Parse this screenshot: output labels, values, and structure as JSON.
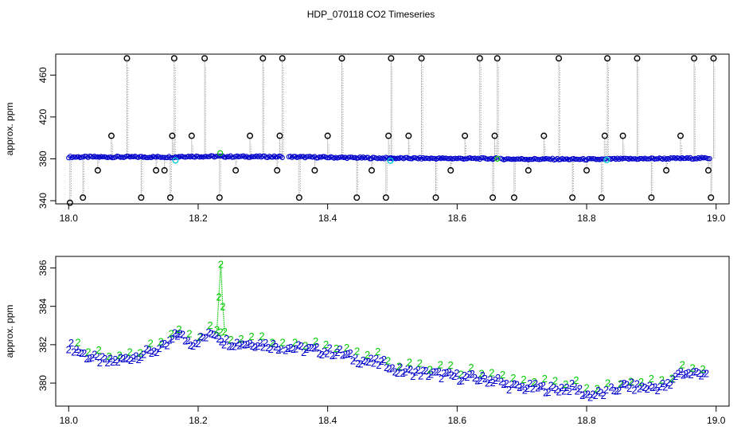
{
  "title": "HDP_070118  CO2 Timeseries",
  "colors": {
    "frame": "#000000",
    "main_points": "#0000cc",
    "spike_points": "#000000",
    "flag_cyan": "#00cccc",
    "flag_green": "#00cc00",
    "spike_lines": "#888888"
  },
  "chart_data": [
    {
      "type": "scatter",
      "ylabel": "approx. ppm",
      "xlim": [
        17.98,
        19.02
      ],
      "ylim": [
        337,
        480
      ],
      "xticks": [
        "18.0",
        "18.2",
        "18.4",
        "18.6",
        "18.8",
        "19.0"
      ],
      "xtick_values": [
        18.0,
        18.2,
        18.4,
        18.6,
        18.8,
        19.0
      ],
      "yticks": [
        "340",
        "380",
        "420",
        "460"
      ],
      "ytick_values": [
        340,
        380,
        420,
        460
      ],
      "baseline_segments": [
        {
          "x": [
            18.0,
            18.17
          ],
          "y": [
            381.8,
            381.8
          ]
        },
        {
          "x": [
            18.17,
            18.33
          ],
          "y": [
            382.4,
            382.0
          ]
        },
        {
          "x": [
            18.34,
            18.5
          ],
          "y": [
            381.9,
            380.6
          ]
        },
        {
          "x": [
            18.5,
            18.66
          ],
          "y": [
            380.6,
            380.2
          ]
        },
        {
          "x": [
            18.667,
            18.83
          ],
          "y": [
            379.9,
            379.5
          ]
        },
        {
          "x": [
            18.835,
            18.99
          ],
          "y": [
            379.8,
            380.7
          ]
        }
      ],
      "spike_x": [
        18.002,
        18.022,
        18.045,
        18.066,
        18.09,
        18.112,
        18.135,
        18.148,
        18.157,
        18.16,
        18.163,
        18.19,
        18.21,
        18.233,
        18.258,
        18.28,
        18.3,
        18.322,
        18.326,
        18.33,
        18.356,
        18.38,
        18.4,
        18.422,
        18.445,
        18.468,
        18.49,
        18.494,
        18.498,
        18.525,
        18.545,
        18.567,
        18.59,
        18.612,
        18.635,
        18.655,
        18.658,
        18.662,
        18.688,
        18.71,
        18.734,
        18.757,
        18.778,
        18.8,
        18.823,
        18.828,
        18.832,
        18.856,
        18.878,
        18.9,
        18.923,
        18.945,
        18.966,
        18.988,
        18.992,
        18.996
      ],
      "spike_y": [
        338,
        343,
        369,
        402,
        476,
        343,
        369,
        369,
        343,
        402,
        476,
        402,
        476,
        343,
        369,
        402,
        476,
        369,
        402,
        476,
        343,
        369,
        402,
        476,
        343,
        369,
        343,
        402,
        476,
        402,
        476,
        343,
        369,
        402,
        476,
        343,
        402,
        476,
        343,
        369,
        402,
        476,
        343,
        369,
        343,
        402,
        476,
        402,
        476,
        343,
        369,
        402,
        476,
        369,
        343,
        476
      ],
      "flags_cyan": {
        "x": [
          18.165,
          18.497,
          18.831
        ],
        "y": [
          378.5,
          378.2,
          378.9
        ]
      },
      "flags_green": {
        "x": [
          18.234,
          18.662
        ],
        "y": [
          385.5,
          380.0
        ]
      }
    },
    {
      "type": "scatter",
      "ylabel": "approx. ppm",
      "xlim": [
        17.98,
        19.02
      ],
      "ylim": [
        378.8,
        386.6
      ],
      "xticks": [
        "18.0",
        "18.2",
        "18.4",
        "18.6",
        "18.8",
        "19.0"
      ],
      "xtick_values": [
        18.0,
        18.2,
        18.4,
        18.6,
        18.8,
        19.0
      ],
      "yticks": [
        "380",
        "382",
        "384",
        "386"
      ],
      "ytick_values": [
        380,
        382,
        384,
        386
      ],
      "point_label": "2",
      "trend_segments": [
        {
          "x": [
            18.0,
            18.03,
            18.06,
            18.09,
            18.12,
            18.15,
            18.168
          ],
          "y": [
            382.0,
            381.4,
            381.1,
            381.3,
            381.6,
            381.9,
            382.6
          ]
        },
        {
          "x": [
            18.168,
            18.19,
            18.21,
            18.225,
            18.24,
            18.26,
            18.29,
            18.31,
            18.328
          ],
          "y": [
            382.6,
            382.1,
            382.4,
            382.7,
            382.2,
            382.1,
            382.1,
            382.0,
            381.9
          ]
        },
        {
          "x": [
            18.335,
            18.36,
            18.39,
            18.42,
            18.44,
            18.47,
            18.495
          ],
          "y": [
            381.9,
            381.8,
            381.7,
            381.6,
            381.3,
            381.1,
            381.0
          ]
        },
        {
          "x": [
            18.5,
            18.53,
            18.56,
            18.59,
            18.62,
            18.65,
            18.663
          ],
          "y": [
            380.7,
            380.6,
            380.5,
            380.4,
            380.3,
            380.2,
            380.2
          ]
        },
        {
          "x": [
            18.668,
            18.69,
            18.72,
            18.75,
            18.78,
            18.8,
            18.83
          ],
          "y": [
            380.0,
            379.8,
            379.8,
            379.7,
            379.8,
            379.4,
            379.5
          ]
        },
        {
          "x": [
            18.838,
            18.86,
            18.88,
            18.9,
            18.93,
            18.94,
            18.96,
            18.985
          ],
          "y": [
            379.6,
            379.9,
            379.8,
            379.8,
            379.9,
            380.6,
            380.5,
            380.6
          ]
        }
      ],
      "spike": {
        "x": [
          18.229,
          18.232,
          18.235,
          18.238,
          18.241
        ],
        "y": [
          382.8,
          384.5,
          386.2,
          384.0,
          382.7
        ]
      }
    }
  ]
}
